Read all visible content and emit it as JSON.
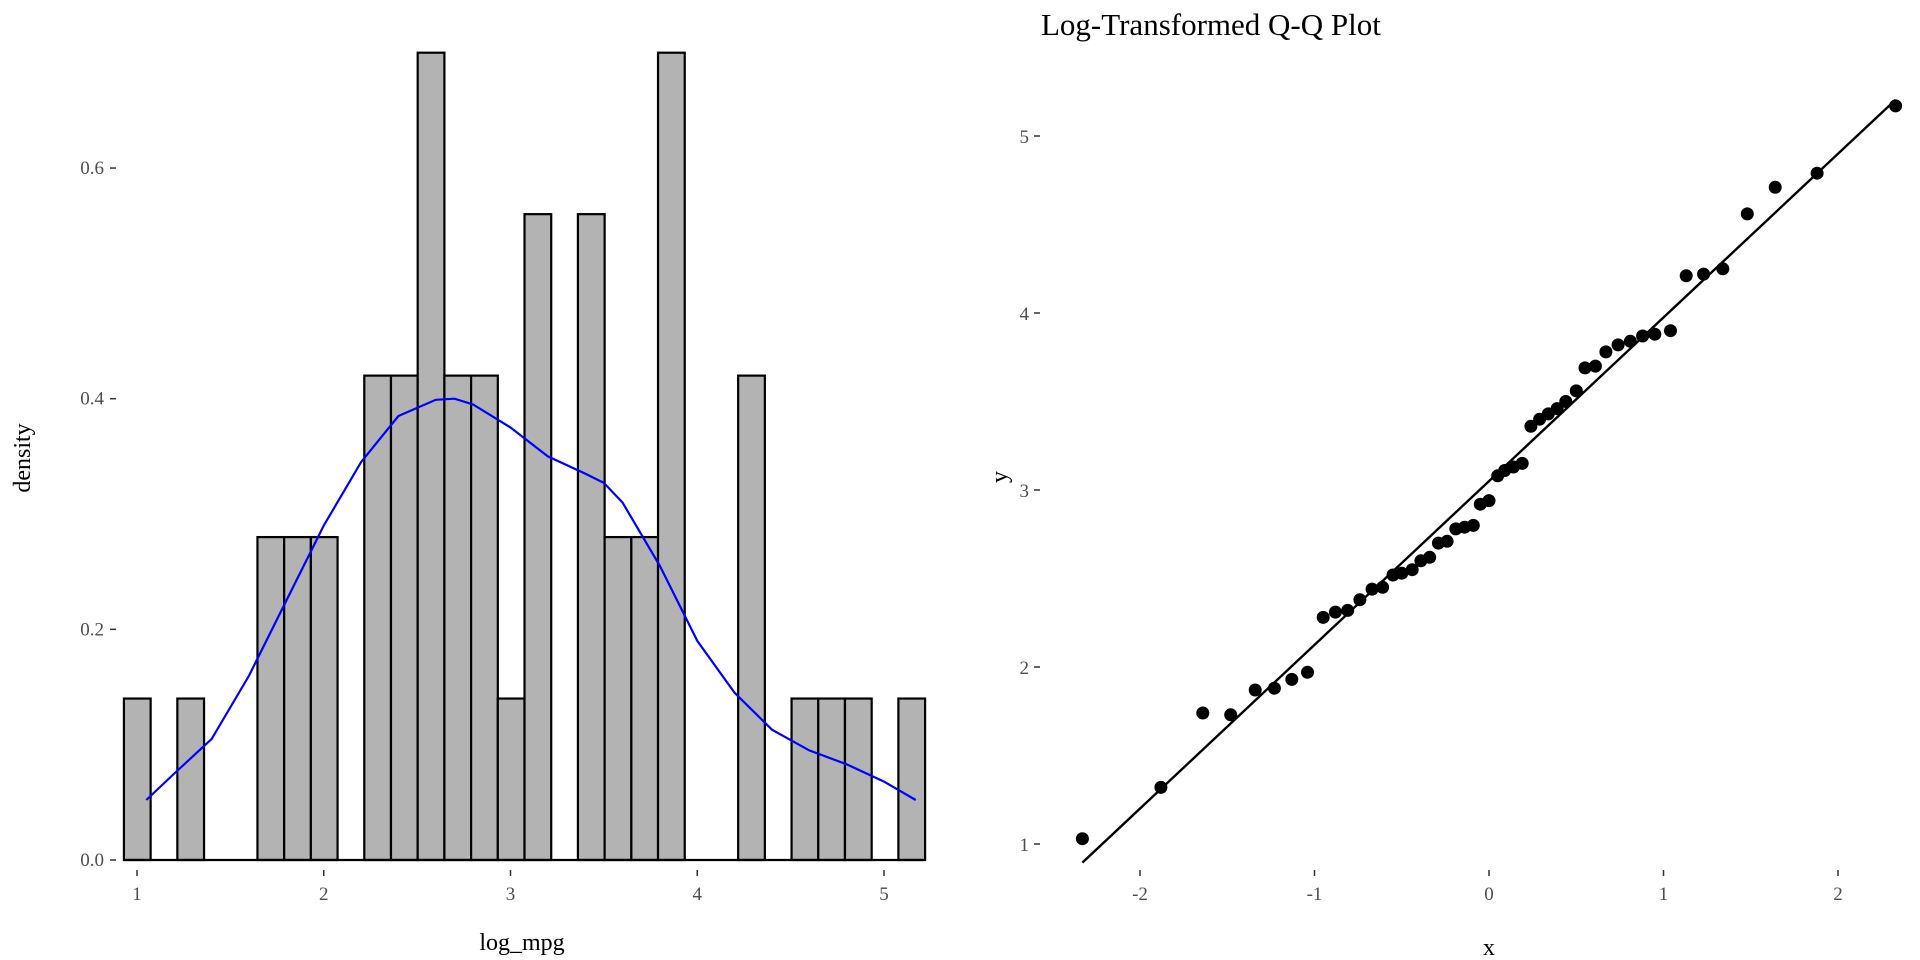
{
  "chart_data": [
    {
      "type": "bar",
      "subtype": "histogram with density curve",
      "title": "",
      "xlabel": "log_mpg",
      "ylabel": "density",
      "xlim": [
        0.93,
        5.2
      ],
      "ylim": [
        0,
        0.7
      ],
      "x_ticks": [
        1,
        2,
        3,
        4,
        5
      ],
      "y_ticks": [
        0.0,
        0.2,
        0.4,
        0.6
      ],
      "y_tick_labels": [
        "0.0",
        "0.2",
        "0.4",
        "0.6"
      ],
      "bin_width": 0.143,
      "bin_start": 0.93,
      "values": [
        0.14,
        0,
        0.14,
        0,
        0,
        0.28,
        0.28,
        0.28,
        0,
        0.42,
        0.42,
        0.7,
        0.42,
        0.42,
        0.14,
        0.56,
        0,
        0.56,
        0.28,
        0.28,
        0.7,
        0,
        0,
        0.42,
        0,
        0.14,
        0.14,
        0.14,
        0,
        0.14
      ],
      "density_curve": {
        "color": "#0000ff",
        "x": [
          1.05,
          1.2,
          1.4,
          1.6,
          1.8,
          2.0,
          2.2,
          2.4,
          2.6,
          2.7,
          2.8,
          3.0,
          3.2,
          3.4,
          3.5,
          3.6,
          3.8,
          4.0,
          4.2,
          4.4,
          4.6,
          4.8,
          5.0,
          5.17
        ],
        "y": [
          0.052,
          0.075,
          0.105,
          0.16,
          0.225,
          0.29,
          0.345,
          0.385,
          0.399,
          0.4,
          0.395,
          0.375,
          0.35,
          0.335,
          0.327,
          0.31,
          0.255,
          0.19,
          0.145,
          0.113,
          0.095,
          0.083,
          0.068,
          0.052
        ]
      },
      "bar_fill": "#b3b3b3",
      "bar_stroke": "#000000",
      "grid": false
    },
    {
      "type": "scatter",
      "subtype": "qq plot",
      "title": "Log-Transformed Q-Q Plot",
      "xlabel": "x",
      "ylabel": "y",
      "xlim": [
        -2.33,
        2.33
      ],
      "ylim": [
        0.9,
        5.25
      ],
      "x_ticks": [
        -2,
        -1,
        0,
        1,
        2
      ],
      "y_ticks": [
        1,
        2,
        3,
        4,
        5
      ],
      "points": {
        "x": [
          -2.33,
          -1.88,
          -1.64,
          -1.48,
          -1.34,
          -1.23,
          -1.13,
          -1.04,
          -0.95,
          -0.88,
          -0.81,
          -0.74,
          -0.67,
          -0.61,
          -0.55,
          -0.5,
          -0.44,
          -0.39,
          -0.34,
          -0.29,
          -0.24,
          -0.19,
          -0.14,
          -0.09,
          -0.05,
          0.0,
          0.05,
          0.09,
          0.14,
          0.19,
          0.24,
          0.29,
          0.34,
          0.39,
          0.44,
          0.5,
          0.55,
          0.61,
          0.67,
          0.74,
          0.81,
          0.88,
          0.95,
          1.04,
          1.13,
          1.23,
          1.34,
          1.48,
          1.64,
          1.88,
          2.33
        ],
        "y": [
          1.03,
          1.32,
          1.74,
          1.73,
          1.87,
          1.88,
          1.93,
          1.97,
          2.28,
          2.31,
          2.32,
          2.38,
          2.44,
          2.45,
          2.52,
          2.53,
          2.55,
          2.6,
          2.62,
          2.7,
          2.71,
          2.78,
          2.79,
          2.8,
          2.92,
          2.94,
          3.08,
          3.11,
          3.13,
          3.15,
          3.36,
          3.4,
          3.43,
          3.46,
          3.5,
          3.56,
          3.69,
          3.7,
          3.78,
          3.82,
          3.84,
          3.87,
          3.88,
          3.9,
          4.21,
          4.22,
          4.25,
          4.56,
          4.71,
          4.79,
          5.17
        ]
      },
      "reference_line": {
        "intercept": 3.05,
        "slope": 0.925
      },
      "point_color": "#000000",
      "grid": false
    }
  ]
}
